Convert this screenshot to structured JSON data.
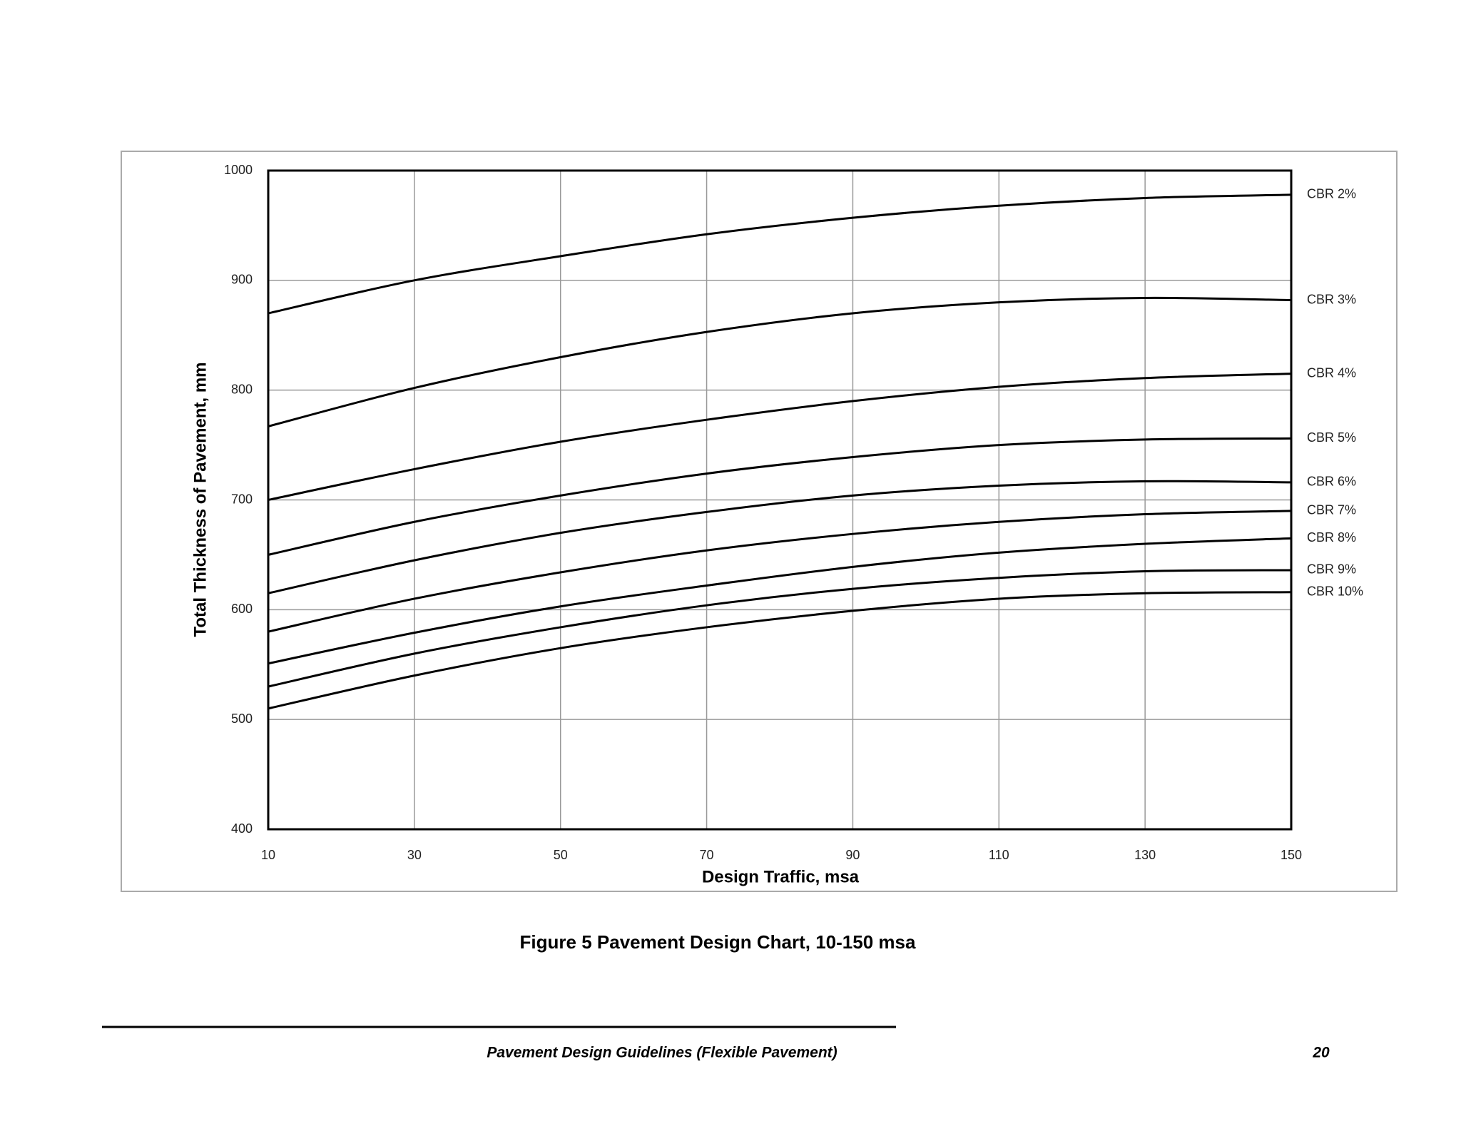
{
  "chart_data": {
    "type": "line",
    "x_label": "Design Traffic, msa",
    "y_label": "Total Thickness of Pavement, mm",
    "x": [
      10,
      30,
      50,
      70,
      90,
      110,
      130,
      150
    ],
    "series": [
      {
        "name": "CBR 2%",
        "color": "#000000",
        "values": [
          870,
          900,
          922,
          942,
          957,
          968,
          975,
          978
        ]
      },
      {
        "name": "CBR 3%",
        "color": "#000000",
        "values": [
          767,
          802,
          830,
          853,
          870,
          880,
          884,
          882
        ]
      },
      {
        "name": "CBR 4%",
        "color": "#000000",
        "values": [
          700,
          728,
          753,
          773,
          790,
          803,
          811,
          815
        ]
      },
      {
        "name": "CBR 5%",
        "color": "#000000",
        "values": [
          650,
          680,
          704,
          724,
          739,
          750,
          755,
          756
        ]
      },
      {
        "name": "CBR 6%",
        "color": "#000000",
        "values": [
          615,
          645,
          670,
          689,
          704,
          713,
          717,
          716
        ]
      },
      {
        "name": "CBR 7%",
        "color": "#000000",
        "values": [
          580,
          610,
          634,
          654,
          669,
          680,
          687,
          690
        ]
      },
      {
        "name": "CBR 8%",
        "color": "#000000",
        "values": [
          551,
          579,
          603,
          622,
          639,
          652,
          660,
          665
        ]
      },
      {
        "name": "CBR 9%",
        "color": "#000000",
        "values": [
          530,
          560,
          584,
          604,
          619,
          629,
          635,
          636
        ]
      },
      {
        "name": "CBR 10%",
        "color": "#000000",
        "values": [
          510,
          540,
          565,
          584,
          599,
          610,
          615,
          616
        ]
      }
    ],
    "xlim": [
      10,
      150
    ],
    "xticks": [
      10,
      30,
      50,
      70,
      90,
      110,
      130,
      150
    ],
    "ylim": [
      400,
      1000
    ],
    "yticks": [
      400,
      500,
      600,
      700,
      800,
      900,
      1000
    ],
    "grid": true
  },
  "caption": "Figure 5 Pavement Design Chart, 10-150 msa",
  "footer": {
    "text": "Pavement Design Guidelines (Flexible Pavement)",
    "page": 20
  }
}
